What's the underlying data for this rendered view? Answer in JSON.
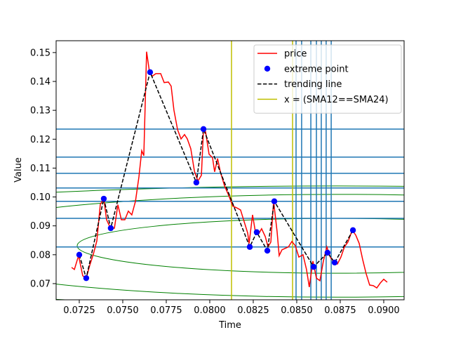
{
  "chart_data": {
    "type": "line",
    "xlabel": "Time",
    "ylabel": "Value",
    "xlim": [
      0.07117,
      0.09117
    ],
    "ylim": [
      0.0644,
      0.1541
    ],
    "xticks": [
      0.0725,
      {
        "value": 0.075,
        "label": "0.0750"
      },
      0.0775,
      {
        "value": 0.08,
        "label": "0.0800"
      },
      0.0825,
      {
        "value": 0.085,
        "label": "0.0850"
      },
      0.0875,
      {
        "value": 0.09,
        "label": "0.0900"
      }
    ],
    "yticks": [
      0.07,
      0.08,
      0.09,
      {
        "value": 0.1,
        "label": "0.10"
      },
      0.11,
      0.12,
      0.13,
      0.14,
      0.15
    ],
    "legend": "upper right",
    "series": [
      {
        "name": "price",
        "color": "#ff0000",
        "style": "solid",
        "x": [
          0.07206,
          0.07222,
          0.07246,
          0.0727,
          0.0729,
          0.0731,
          0.07331,
          0.07351,
          0.07371,
          0.07391,
          0.07407,
          0.07431,
          0.07452,
          0.07472,
          0.07492,
          0.07512,
          0.07532,
          0.07552,
          0.07573,
          0.07593,
          0.07609,
          0.07621,
          0.07637,
          0.07653,
          0.07669,
          0.0769,
          0.07718,
          0.07738,
          0.07762,
          0.07778,
          0.07794,
          0.07815,
          0.07835,
          0.07855,
          0.07871,
          0.07891,
          0.07912,
          0.07932,
          0.07952,
          0.07964,
          0.07976,
          0.07996,
          0.08016,
          0.08028,
          0.08045,
          0.08061,
          0.08085,
          0.08105,
          0.08133,
          0.08153,
          0.08177,
          0.08198,
          0.08218,
          0.08226,
          0.08246,
          0.08262,
          0.08282,
          0.08298,
          0.08319,
          0.08335,
          0.08351,
          0.08367,
          0.08387,
          0.08399,
          0.08415,
          0.08452,
          0.08472,
          0.08492,
          0.08512,
          0.08536,
          0.08556,
          0.08572,
          0.08593,
          0.08613,
          0.08633,
          0.08653,
          0.08673,
          0.08694,
          0.08714,
          0.08734,
          0.08754,
          0.08774,
          0.08794,
          0.08819,
          0.08839,
          0.08859,
          0.08879,
          0.08899,
          0.08919,
          0.0894,
          0.0896,
          0.0898,
          0.09,
          0.0902
        ],
        "values": [
          0.0756,
          0.0749,
          0.0797,
          0.0727,
          0.0719,
          0.0763,
          0.0802,
          0.0848,
          0.0975,
          0.0994,
          0.0921,
          0.089,
          0.0892,
          0.0973,
          0.0921,
          0.0921,
          0.0951,
          0.0938,
          0.0985,
          0.107,
          0.116,
          0.1143,
          0.1503,
          0.1435,
          0.1418,
          0.1427,
          0.1427,
          0.1396,
          0.1398,
          0.1384,
          0.1301,
          0.1233,
          0.1201,
          0.1216,
          0.1201,
          0.1167,
          0.1089,
          0.1055,
          0.1075,
          0.1235,
          0.1226,
          0.1148,
          0.1136,
          0.1087,
          0.1133,
          0.1087,
          0.1038,
          0.1011,
          0.0968,
          0.0963,
          0.0955,
          0.0914,
          0.0875,
          0.0839,
          0.0938,
          0.088,
          0.0873,
          0.089,
          0.0863,
          0.0827,
          0.0844,
          0.0985,
          0.088,
          0.0797,
          0.0817,
          0.0827,
          0.0846,
          0.0831,
          0.0792,
          0.08,
          0.0749,
          0.0688,
          0.0778,
          0.0719,
          0.071,
          0.0778,
          0.0827,
          0.079,
          0.0775,
          0.0768,
          0.0792,
          0.0827,
          0.0844,
          0.0885,
          0.0868,
          0.0839,
          0.0783,
          0.0734,
          0.0695,
          0.0693,
          0.0685,
          0.0702,
          0.0715,
          0.0705
        ]
      },
      {
        "name": "extreme point",
        "color": "#0000ff",
        "style": "marker",
        "x": [
          0.0725,
          0.0729,
          0.07391,
          0.07431,
          0.07657,
          0.07923,
          0.07964,
          0.0823,
          0.0827,
          0.08331,
          0.08371,
          0.08597,
          0.08677,
          0.08718,
          0.08823
        ],
        "values": [
          0.08,
          0.0719,
          0.0994,
          0.0892,
          0.1432,
          0.105,
          0.1235,
          0.0827,
          0.0878,
          0.0814,
          0.0985,
          0.0758,
          0.0807,
          0.0773,
          0.0885
        ]
      },
      {
        "name": "trending line",
        "color": "#000000",
        "style": "dashed",
        "x": [
          0.0725,
          0.0729,
          0.07391,
          0.07431,
          0.07657,
          0.07923,
          0.07964,
          0.0823,
          0.0827,
          0.08331,
          0.08371,
          0.08597,
          0.08677,
          0.08718,
          0.08823
        ],
        "values": [
          0.08,
          0.0719,
          0.0994,
          0.0892,
          0.1432,
          0.105,
          0.1235,
          0.0827,
          0.0878,
          0.0814,
          0.0985,
          0.0758,
          0.0807,
          0.0773,
          0.0885
        ]
      },
      {
        "name": "x = (SMA12==SMA24)",
        "color": "#bfbf00",
        "style": "vline",
        "x": [
          0.08125,
          0.08476
        ]
      }
    ],
    "hlines": {
      "color": "#1f77b4",
      "values": [
        0.1235,
        0.1138,
        0.1082,
        0.1031,
        0.0985,
        0.0926,
        0.0827
      ]
    },
    "vlines": {
      "color": "#1f77b4",
      "x": [
        0.08496,
        0.08528,
        0.08581,
        0.08613,
        0.08641,
        0.08669,
        0.08698
      ]
    },
    "contours": {
      "color": "#008000",
      "ellipses": [
        {
          "cx": 0.0873,
          "cy": 0.0831,
          "rx": 0.01492,
          "ry": 0.0095
        },
        {
          "cx": 0.0873,
          "cy": 0.0831,
          "rx": 0.02419,
          "ry": 0.0178
        },
        {
          "cx": 0.0873,
          "cy": 0.0831,
          "rx": 0.03629,
          "ry": 0.0207
        }
      ]
    }
  }
}
